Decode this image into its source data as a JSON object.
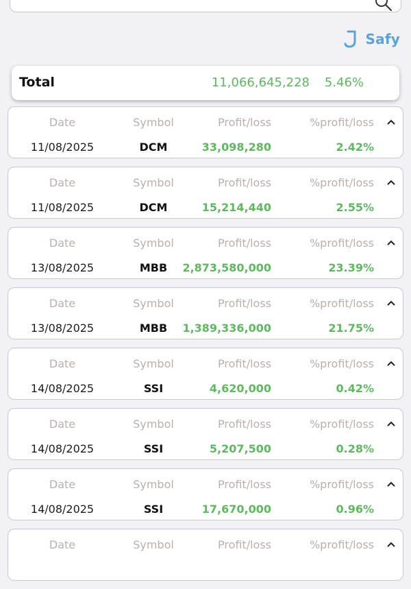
{
  "brand": {
    "name": "Safy",
    "color": "#5aa3d6"
  },
  "icons": {
    "search": "search-icon",
    "logo": "safy-logo-icon",
    "collapse": "chevron-up-icon"
  },
  "colors": {
    "profit": "#5fb860",
    "header_text": "#b9b0ad",
    "background": "#f2f2f6"
  },
  "total": {
    "label": "Total",
    "amount": "11,066,645,228",
    "percent": "5.46%"
  },
  "columns": {
    "date": "Date",
    "symbol": "Symbol",
    "profit": "Profit/loss",
    "percent": "%profit/loss"
  },
  "trades": [
    {
      "date": "11/08/2025",
      "symbol": "DCM",
      "profit": "33,098,280",
      "percent": "2.42%"
    },
    {
      "date": "11/08/2025",
      "symbol": "DCM",
      "profit": "15,214,440",
      "percent": "2.55%"
    },
    {
      "date": "13/08/2025",
      "symbol": "MBB",
      "profit": "2,873,580,000",
      "percent": "23.39%"
    },
    {
      "date": "13/08/2025",
      "symbol": "MBB",
      "profit": "1,389,336,000",
      "percent": "21.75%"
    },
    {
      "date": "14/08/2025",
      "symbol": "SSI",
      "profit": "4,620,000",
      "percent": "0.42%"
    },
    {
      "date": "14/08/2025",
      "symbol": "SSI",
      "profit": "5,207,500",
      "percent": "0.28%"
    },
    {
      "date": "14/08/2025",
      "symbol": "SSI",
      "profit": "17,670,000",
      "percent": "0.96%"
    },
    {
      "date": "",
      "symbol": "",
      "profit": "",
      "percent": ""
    }
  ]
}
